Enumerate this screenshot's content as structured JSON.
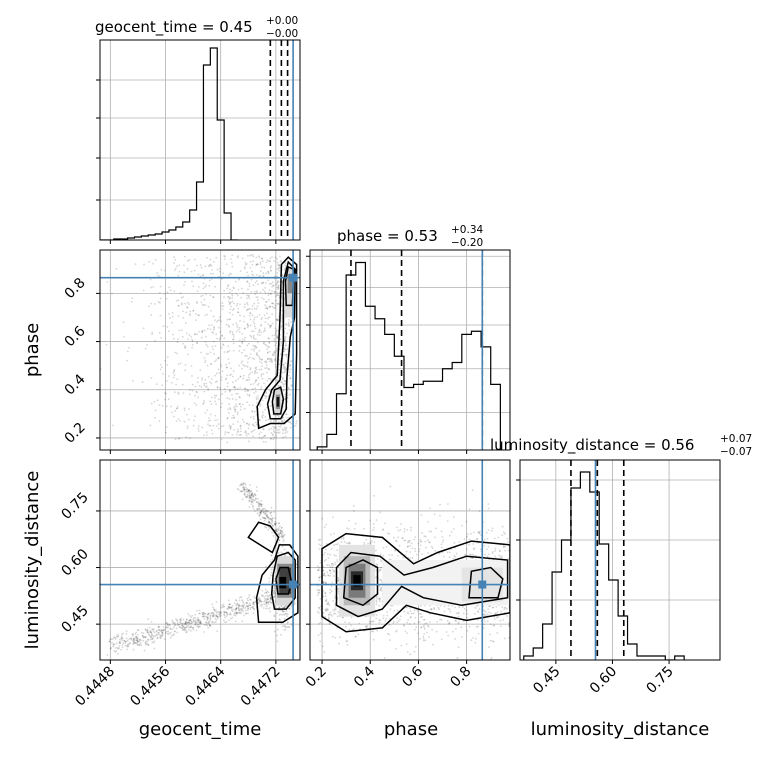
{
  "chart_data": {
    "type": "corner",
    "truth_color": "#4682b4",
    "parameters": [
      "geocent_time",
      "phase",
      "luminosity_distance"
    ],
    "axis_labels": {
      "geocent_time": "geocent_time",
      "phase": "phase",
      "luminosity_distance": "luminosity_distance"
    },
    "titles": [
      {
        "param": "geocent_time",
        "name": "geocent_time",
        "median": "0.45",
        "upper": "+0.00",
        "lower": "−0.00"
      },
      {
        "param": "phase",
        "name": "phase",
        "median": "0.53",
        "upper": "+0.34",
        "lower": "−0.20"
      },
      {
        "param": "luminosity_distance",
        "name": "luminosity_distance",
        "median": "0.56",
        "upper": "+0.07",
        "lower": "−0.07"
      }
    ],
    "truths": {
      "geocent_time": 0.44745,
      "phase": 0.865,
      "luminosity_distance": 0.555
    },
    "quantiles": {
      "geocent_time": [
        0.44712,
        0.44728,
        0.44737
      ],
      "phase": [
        0.32,
        0.53,
        0.865
      ],
      "luminosity_distance": [
        0.49,
        0.56,
        0.63
      ]
    },
    "ranges": {
      "geocent_time": [
        0.44465,
        0.44755
      ],
      "phase": [
        0.15,
        0.98
      ],
      "luminosity_distance": [
        0.355,
        0.885
      ]
    },
    "ticks": {
      "geocent_time": {
        "values": [
          0.4448,
          0.4456,
          0.4464,
          0.4472
        ],
        "labels": [
          "0.4448",
          "0.4456",
          "0.4464",
          "0.4472"
        ]
      },
      "phase": {
        "values": [
          0.2,
          0.4,
          0.6,
          0.8
        ],
        "labels": [
          "0.2",
          "0.4",
          "0.6",
          "0.8"
        ]
      },
      "luminosity_distance": {
        "values": [
          0.45,
          0.6,
          0.75
        ],
        "labels": [
          "0.45",
          "0.60",
          "0.75"
        ]
      }
    },
    "histograms": {
      "geocent_time": {
        "bin_width": 0.0001,
        "start": 0.44465,
        "counts": [
          0,
          0,
          1,
          1,
          2,
          3,
          4,
          5,
          6,
          8,
          10,
          13,
          18,
          30,
          58,
          175,
          192,
          120,
          27,
          0
        ],
        "ymax": 200,
        "yticks": [
          40,
          82,
          122,
          160
        ]
      },
      "phase": {
        "bin_width": 0.04,
        "start": 0.18,
        "counts": [
          1,
          5,
          18,
          56,
          60,
          46,
          42,
          37,
          30,
          20,
          21,
          22,
          22,
          26,
          28,
          37,
          38,
          33,
          21
        ],
        "ymax": 64,
        "yticks": [
          12,
          26,
          40,
          52,
          62
        ]
      },
      "luminosity_distance": {
        "bin_width": 0.025,
        "start": 0.365,
        "counts": [
          1,
          3,
          9,
          22,
          30,
          43,
          47,
          42,
          29,
          20,
          11,
          4,
          1,
          1,
          1,
          0,
          1
        ],
        "ymax": 50,
        "yticks": [
          15,
          30,
          45
        ]
      }
    },
    "grid": true
  }
}
